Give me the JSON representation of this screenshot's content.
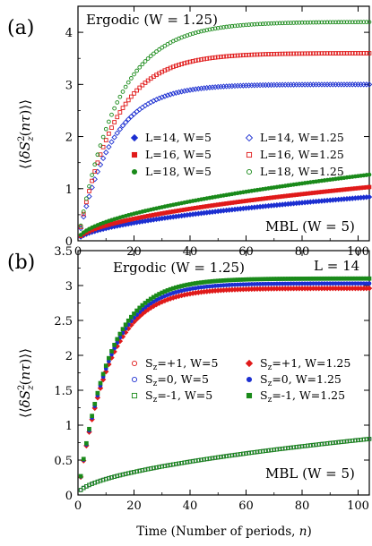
{
  "chart_data": [
    {
      "panel": "(a)",
      "type": "scatter",
      "ylabel": "⟨⟨δS_z²(nτ)⟩⟩",
      "xlim": [
        0,
        104
      ],
      "ylim": [
        0,
        4.5
      ],
      "xticks": [
        "0",
        "20",
        "40",
        "60",
        "80",
        "100"
      ],
      "yticks": [
        "0",
        "1",
        "2",
        "3",
        "4"
      ],
      "annotations": [
        "Ergodic (W = 1.25)",
        "MBL (W = 5)"
      ],
      "legend": "center-right, two columns",
      "series": [
        {
          "name": "L=14, W=5",
          "marker": "filled-diamond",
          "color": "#1c2fd1",
          "saturation": 0.85,
          "tau": 45,
          "power": 0.5
        },
        {
          "name": "L=16, W=5",
          "marker": "filled-square",
          "color": "#e01a1a",
          "saturation": 1.05,
          "tau": 55,
          "power": 0.5
        },
        {
          "name": "L=18, W=5",
          "marker": "filled-circle",
          "color": "#1a8a1a",
          "saturation": 1.3,
          "tau": 65,
          "power": 0.5
        },
        {
          "name": "L=14, W=1.25",
          "marker": "open-diamond",
          "color": "#1c2fd1",
          "saturation": 3.0,
          "tau": 12,
          "power": 1
        },
        {
          "name": "L=16, W=1.25",
          "marker": "open-square",
          "color": "#e01a1a",
          "saturation": 3.6,
          "tau": 13,
          "power": 1
        },
        {
          "name": "L=18, W=1.25",
          "marker": "open-circle",
          "color": "#1a8a1a",
          "saturation": 4.2,
          "tau": 14,
          "power": 1
        }
      ]
    },
    {
      "panel": "(b)",
      "type": "scatter",
      "xlabel": "Time (Number of periods, n)",
      "ylabel": "⟨⟨δS_z²(nτ)⟩⟩",
      "xlim": [
        0,
        104
      ],
      "ylim": [
        0,
        3.5
      ],
      "xticks": [
        "0",
        "20",
        "40",
        "60",
        "80",
        "100"
      ],
      "yticks": [
        "0",
        "0.5",
        "1",
        "1.5",
        "2",
        "2.5",
        "3",
        "3.5"
      ],
      "annotations": [
        "Ergodic (W = 1.25)",
        "MBL (W = 5)",
        "L = 14"
      ],
      "legend": "center-right, two columns",
      "series": [
        {
          "name": "S_z=+1, W=5",
          "marker": "open-circle",
          "color": "#e01a1a",
          "saturation": 0.82,
          "tau": 60,
          "power": 0.5
        },
        {
          "name": "S_z=0, W=5",
          "marker": "open-circle",
          "color": "#1c2fd1",
          "saturation": 0.82,
          "tau": 60,
          "power": 0.5
        },
        {
          "name": "S_z=-1, W=5",
          "marker": "open-square",
          "color": "#1a8a1a",
          "saturation": 0.82,
          "tau": 60,
          "power": 0.5
        },
        {
          "name": "S_z=+1, W=1.25",
          "marker": "filled-diamond",
          "color": "#e01a1a",
          "saturation": 2.96,
          "tau": 11,
          "power": 1
        },
        {
          "name": "S_z=0, W=1.25",
          "marker": "filled-circle",
          "color": "#1c2fd1",
          "saturation": 3.03,
          "tau": 11,
          "power": 1
        },
        {
          "name": "S_z=-1, W=1.25",
          "marker": "filled-square",
          "color": "#1a8a1a",
          "saturation": 3.1,
          "tau": 11,
          "power": 1
        }
      ]
    }
  ],
  "labels": {
    "panel_a": "(a)",
    "panel_b": "(b)",
    "ergodic_a": "Ergodic (W = 1.25)",
    "mbl_a": "MBL (W = 5)",
    "ergodic_b": "Ergodic (W = 1.25)",
    "mbl_b": "MBL (W = 5)",
    "l14_b": "L = 14",
    "xaxis_prefix": "Time (Number of periods, ",
    "xaxis_var": "n",
    "xaxis_suffix": ")",
    "legend_a": [
      "L=14, W=5",
      "L=16, W=5",
      "L=18, W=5",
      "L=14, W=1.25",
      "L=16, W=1.25",
      "L=18, W=1.25"
    ],
    "legend_b_left": [
      {
        "sz": "S",
        "sub": "z",
        "rest": "=+1, W=5"
      },
      {
        "sz": "S",
        "sub": "z",
        "rest": "=0, W=5"
      },
      {
        "sz": "S",
        "sub": "z",
        "rest": "=-1, W=5"
      }
    ],
    "legend_b_right": [
      {
        "sz": "S",
        "sub": "z",
        "rest": "=+1, W=1.25"
      },
      {
        "sz": "S",
        "sub": "z",
        "rest": "=0, W=1.25"
      },
      {
        "sz": "S",
        "sub": "z",
        "rest": "=-1, W=1.25"
      }
    ]
  }
}
